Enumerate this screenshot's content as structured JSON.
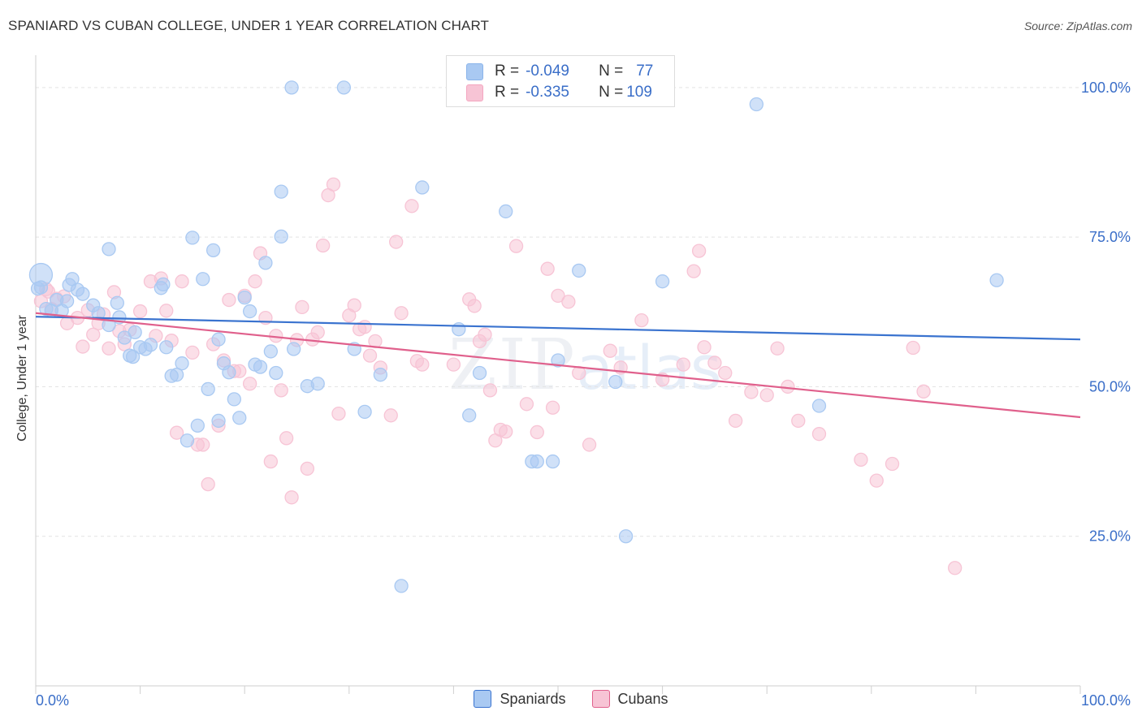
{
  "title": "SPANIARD VS CUBAN COLLEGE, UNDER 1 YEAR CORRELATION CHART",
  "source": "Source: ZipAtlas.com",
  "watermark": {
    "zip": "ZIP",
    "atlas": "atlas"
  },
  "legend": {
    "rows": [
      {
        "r_label": "R =",
        "r_value": "-0.049",
        "n_label": "N =",
        "n_value": "77",
        "color": "#8ab4ea"
      },
      {
        "r_label": "R =",
        "r_value": "-0.335",
        "n_label": "N =",
        "n_value": "109",
        "color": "#f4a6c0"
      }
    ]
  },
  "bottom_legend": [
    {
      "label": "Spaniards",
      "color": "#a9c9f2"
    },
    {
      "label": "Cubans",
      "color": "#f7c4d5"
    }
  ],
  "chart_data": {
    "type": "scatter",
    "title": "SPANIARD VS CUBAN COLLEGE, UNDER 1 YEAR CORRELATION CHART",
    "ylabel": "College, Under 1 year",
    "xlabel": "",
    "xlim": [
      0,
      100
    ],
    "ylim": [
      0,
      105
    ],
    "x_tick_labels": [
      "0.0%",
      "100.0%"
    ],
    "y_tick_labels": [
      "25.0%",
      "50.0%",
      "75.0%",
      "100.0%"
    ],
    "y_ticks": [
      25,
      50,
      75,
      100
    ],
    "grid": true,
    "series": [
      {
        "name": "Spaniards",
        "color": "#3a73cf",
        "fill": "#a9c9f2",
        "trend": [
          [
            0,
            61.7
          ],
          [
            100,
            57.9
          ]
        ],
        "points": [
          [
            0.5,
            68.7
          ],
          [
            0.5,
            66.6
          ],
          [
            1.5,
            62.7
          ],
          [
            2.5,
            62.7
          ],
          [
            3,
            64.3
          ],
          [
            3.5,
            68
          ],
          [
            4,
            66.2
          ],
          [
            4.5,
            65.5
          ],
          [
            5.5,
            63.6
          ],
          [
            6,
            62.3
          ],
          [
            7,
            73
          ],
          [
            7,
            60.3
          ],
          [
            8,
            61.6
          ],
          [
            8.5,
            58.2
          ],
          [
            9,
            55.2
          ],
          [
            9.5,
            59.1
          ],
          [
            10,
            56.6
          ],
          [
            10.5,
            56.3
          ],
          [
            12,
            66.5
          ],
          [
            12.2,
            67.1
          ],
          [
            12.5,
            56.6
          ],
          [
            13,
            51.8
          ],
          [
            13.5,
            52
          ],
          [
            14,
            53.9
          ],
          [
            14.5,
            41
          ],
          [
            15,
            74.9
          ],
          [
            15.5,
            43.5
          ],
          [
            16,
            68
          ],
          [
            16.5,
            49.6
          ],
          [
            17,
            72.8
          ],
          [
            17.5,
            57.9
          ],
          [
            17.5,
            44.3
          ],
          [
            18,
            53.9
          ],
          [
            18.5,
            52.4
          ],
          [
            19,
            47.9
          ],
          [
            19.5,
            44.8
          ],
          [
            20,
            64.9
          ],
          [
            20.5,
            62.6
          ],
          [
            21,
            53.7
          ],
          [
            21.5,
            53.3
          ],
          [
            22,
            70.7
          ],
          [
            22.5,
            55.9
          ],
          [
            23,
            52.3
          ],
          [
            23.5,
            82.6
          ],
          [
            23.5,
            75.1
          ],
          [
            24.5,
            100
          ],
          [
            24.7,
            56.3
          ],
          [
            26,
            50.1
          ],
          [
            27,
            50.5
          ],
          [
            29.5,
            100
          ],
          [
            30.5,
            56.3
          ],
          [
            31.5,
            45.8
          ],
          [
            33,
            52
          ],
          [
            35,
            16.7
          ],
          [
            37,
            83.3
          ],
          [
            40.5,
            59.6
          ],
          [
            41.5,
            45.2
          ],
          [
            42.5,
            52.3
          ],
          [
            45,
            79.3
          ],
          [
            47.5,
            37.5
          ],
          [
            48,
            37.5
          ],
          [
            49.5,
            37.5
          ],
          [
            50,
            54.4
          ],
          [
            52,
            69.4
          ],
          [
            55.5,
            50.8
          ],
          [
            56.5,
            25
          ],
          [
            60,
            67.6
          ],
          [
            69,
            97.2
          ],
          [
            75,
            46.8
          ],
          [
            92,
            67.8
          ],
          [
            0.2,
            66.4
          ],
          [
            1,
            63
          ],
          [
            2,
            64.5
          ],
          [
            3.2,
            67
          ],
          [
            9.3,
            55
          ],
          [
            11,
            57
          ],
          [
            7.8,
            64
          ]
        ],
        "sizes_note": "one large point near origin"
      },
      {
        "name": "Cubans",
        "color": "#e0608c",
        "fill": "#f7c4d5",
        "trend": [
          [
            0,
            62.3
          ],
          [
            100,
            44.9
          ]
        ],
        "points": [
          [
            0.5,
            64.3
          ],
          [
            1,
            66.3
          ],
          [
            1.5,
            63
          ],
          [
            2,
            64.7
          ],
          [
            3,
            60.6
          ],
          [
            4,
            61.5
          ],
          [
            4.5,
            56.7
          ],
          [
            5.5,
            58.7
          ],
          [
            6,
            60.6
          ],
          [
            6.5,
            62.1
          ],
          [
            7,
            56.4
          ],
          [
            7.5,
            65.8
          ],
          [
            8,
            59.3
          ],
          [
            8.5,
            57.1
          ],
          [
            9,
            59.5
          ],
          [
            10,
            62.6
          ],
          [
            11,
            67.6
          ],
          [
            11.5,
            58.5
          ],
          [
            12,
            68.1
          ],
          [
            12.5,
            62.7
          ],
          [
            13,
            57.7
          ],
          [
            13.5,
            42.3
          ],
          [
            14,
            67.6
          ],
          [
            15,
            55.7
          ],
          [
            15.5,
            40.3
          ],
          [
            16,
            40.3
          ],
          [
            16.5,
            33.7
          ],
          [
            17,
            57.1
          ],
          [
            17.5,
            43.5
          ],
          [
            18,
            54.4
          ],
          [
            18.5,
            64.5
          ],
          [
            19,
            52.6
          ],
          [
            19.5,
            52.6
          ],
          [
            20,
            65.2
          ],
          [
            20.5,
            50.5
          ],
          [
            21,
            67.6
          ],
          [
            21.5,
            72.3
          ],
          [
            22,
            61.5
          ],
          [
            22.5,
            37.5
          ],
          [
            23,
            58.5
          ],
          [
            23.5,
            49.4
          ],
          [
            24,
            41.4
          ],
          [
            24.5,
            31.5
          ],
          [
            25,
            57.8
          ],
          [
            25.5,
            63.3
          ],
          [
            26,
            36.3
          ],
          [
            26.5,
            57.9
          ],
          [
            27,
            59.1
          ],
          [
            27.5,
            73.6
          ],
          [
            28,
            82
          ],
          [
            28.5,
            83.8
          ],
          [
            29,
            45.5
          ],
          [
            30,
            61.9
          ],
          [
            30.5,
            63.6
          ],
          [
            31,
            59.6
          ],
          [
            31.5,
            60
          ],
          [
            32,
            55.2
          ],
          [
            32.5,
            57.6
          ],
          [
            33,
            53.2
          ],
          [
            34,
            45.2
          ],
          [
            34.5,
            74.2
          ],
          [
            35,
            62.3
          ],
          [
            36,
            80.2
          ],
          [
            36.5,
            54.3
          ],
          [
            37,
            53.7
          ],
          [
            40,
            53.7
          ],
          [
            41.5,
            64.6
          ],
          [
            42,
            63.5
          ],
          [
            42.5,
            57.6
          ],
          [
            43,
            58.7
          ],
          [
            43.5,
            49.4
          ],
          [
            44,
            41
          ],
          [
            44.5,
            42.8
          ],
          [
            45,
            42.5
          ],
          [
            46,
            73.5
          ],
          [
            47,
            47.1
          ],
          [
            48,
            42.4
          ],
          [
            49,
            69.7
          ],
          [
            49.5,
            46.5
          ],
          [
            50,
            65.2
          ],
          [
            51,
            64.2
          ],
          [
            52,
            52.3
          ],
          [
            53,
            40.3
          ],
          [
            55,
            56
          ],
          [
            56,
            53.2
          ],
          [
            58,
            61.1
          ],
          [
            60,
            51.2
          ],
          [
            62,
            53.7
          ],
          [
            63,
            69.3
          ],
          [
            63.5,
            72.7
          ],
          [
            64,
            56.6
          ],
          [
            65,
            54
          ],
          [
            66,
            52.3
          ],
          [
            67,
            44.3
          ],
          [
            68.5,
            49.1
          ],
          [
            70,
            48.6
          ],
          [
            71,
            56.4
          ],
          [
            72,
            50
          ],
          [
            73,
            44.3
          ],
          [
            75,
            42.1
          ],
          [
            79,
            37.8
          ],
          [
            80.5,
            34.3
          ],
          [
            82,
            37.1
          ],
          [
            84,
            56.5
          ],
          [
            85,
            49.2
          ],
          [
            88,
            19.7
          ],
          [
            1.2,
            65.9
          ],
          [
            5,
            62.8
          ],
          [
            2.7,
            65.1
          ]
        ]
      }
    ]
  }
}
